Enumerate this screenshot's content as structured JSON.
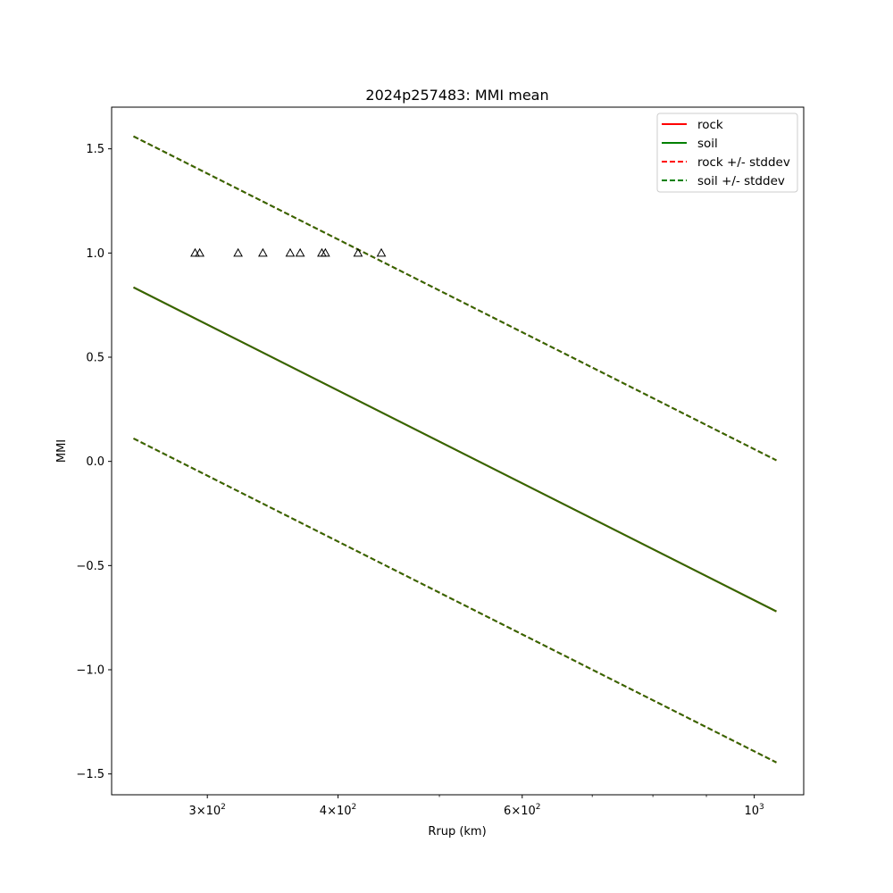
{
  "chart_data": {
    "type": "line",
    "title": "2024p257483: MMI mean",
    "xlabel": "Rrup (km)",
    "ylabel": "MMI",
    "xscale": "log",
    "xlim": [
      243,
      1115
    ],
    "ylim": [
      -1.6,
      1.7
    ],
    "yticks": [
      1.5,
      1.0,
      0.5,
      0.0,
      -0.5,
      -1.0,
      -1.5
    ],
    "ytick_labels": [
      "1.5",
      "1.0",
      "0.5",
      "0.0",
      "−0.5",
      "−1.0",
      "−1.5"
    ],
    "xticks": [
      {
        "value": 300,
        "base": "3×10",
        "exp": "2"
      },
      {
        "value": 400,
        "base": "4×10",
        "exp": "2"
      },
      {
        "value": 600,
        "base": "6×10",
        "exp": "2"
      },
      {
        "value": 1000,
        "base": "10",
        "exp": "3"
      }
    ],
    "x_minor_ticks": [
      500,
      700,
      800,
      900
    ],
    "grid": false,
    "legend_position": "top-right",
    "legend": [
      {
        "label": "rock",
        "color": "#ff0000",
        "style": "solid"
      },
      {
        "label": "soil",
        "color": "#008000",
        "style": "solid"
      },
      {
        "label": "rock +/- stddev",
        "color": "#ff0000",
        "style": "dashed"
      },
      {
        "label": "soil +/- stddev",
        "color": "#008000",
        "style": "dashed"
      }
    ],
    "series": [
      {
        "name": "rock",
        "color": "#ff0000",
        "style": "solid",
        "x": [
          255,
          1050
        ],
        "y": [
          0.835,
          -0.72
        ]
      },
      {
        "name": "soil",
        "color": "#2e6b00",
        "style": "solid",
        "x": [
          255,
          1050
        ],
        "y": [
          0.835,
          -0.72
        ]
      },
      {
        "name": "rock +/- stddev",
        "color": "#ff0000",
        "style": "dashed",
        "x": [
          255,
          1050
        ],
        "y": [
          1.56,
          0.005
        ]
      },
      {
        "name": "rock +/- stddev",
        "color": "#ff0000",
        "style": "dashed",
        "x": [
          255,
          1050
        ],
        "y": [
          0.11,
          -1.445
        ]
      },
      {
        "name": "soil +/- stddev",
        "color": "#2e6b00",
        "style": "dashed",
        "x": [
          255,
          1050
        ],
        "y": [
          1.56,
          0.005
        ]
      },
      {
        "name": "soil +/- stddev",
        "color": "#2e6b00",
        "style": "dashed",
        "x": [
          255,
          1050
        ],
        "y": [
          0.11,
          -1.445
        ]
      }
    ],
    "observations": {
      "marker": "triangle-open",
      "color": "#000000",
      "x": [
        292,
        295,
        321,
        339,
        360,
        368,
        386,
        389,
        418,
        440
      ],
      "y": [
        1,
        1,
        1,
        1,
        1,
        1,
        1,
        1,
        1,
        1
      ]
    }
  }
}
